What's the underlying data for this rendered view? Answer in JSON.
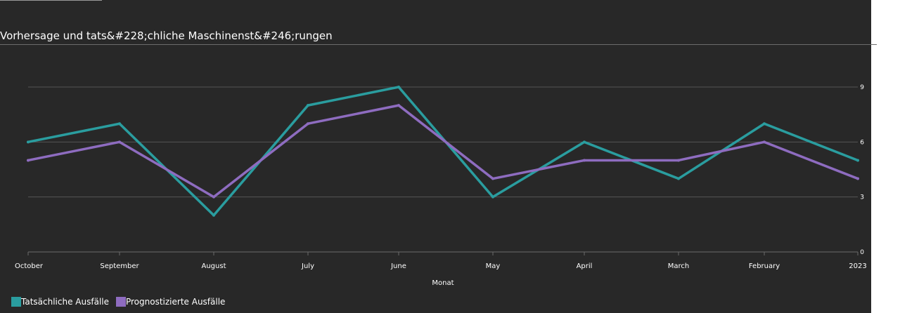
{
  "chart_data": {
    "type": "line",
    "title": "Vorhersage und tats&#228;chliche Maschinenst&#246;rungen",
    "categories": [
      "October",
      "September",
      "August",
      "July",
      "June",
      "May",
      "April",
      "March",
      "February",
      "2023"
    ],
    "series": [
      {
        "name": "Tatsächliche Ausfälle",
        "color": "#2a9d9f",
        "values": [
          6,
          7,
          2,
          8,
          9,
          3,
          6,
          4,
          7,
          5
        ]
      },
      {
        "name": "Prognostizierte Ausfälle",
        "color": "#8e6cc0",
        "values": [
          5,
          6,
          3,
          7,
          8,
          4,
          5,
          5,
          6,
          4
        ]
      }
    ],
    "xlabel": "Monat",
    "ylabel": "",
    "ylim": [
      0,
      9
    ],
    "yticks": [
      "0",
      "3",
      "6",
      "9"
    ],
    "grid": true,
    "legend": "bottom-left"
  },
  "colors": {
    "background": "#282828",
    "grid": "#555555",
    "text": "#ffffff"
  }
}
